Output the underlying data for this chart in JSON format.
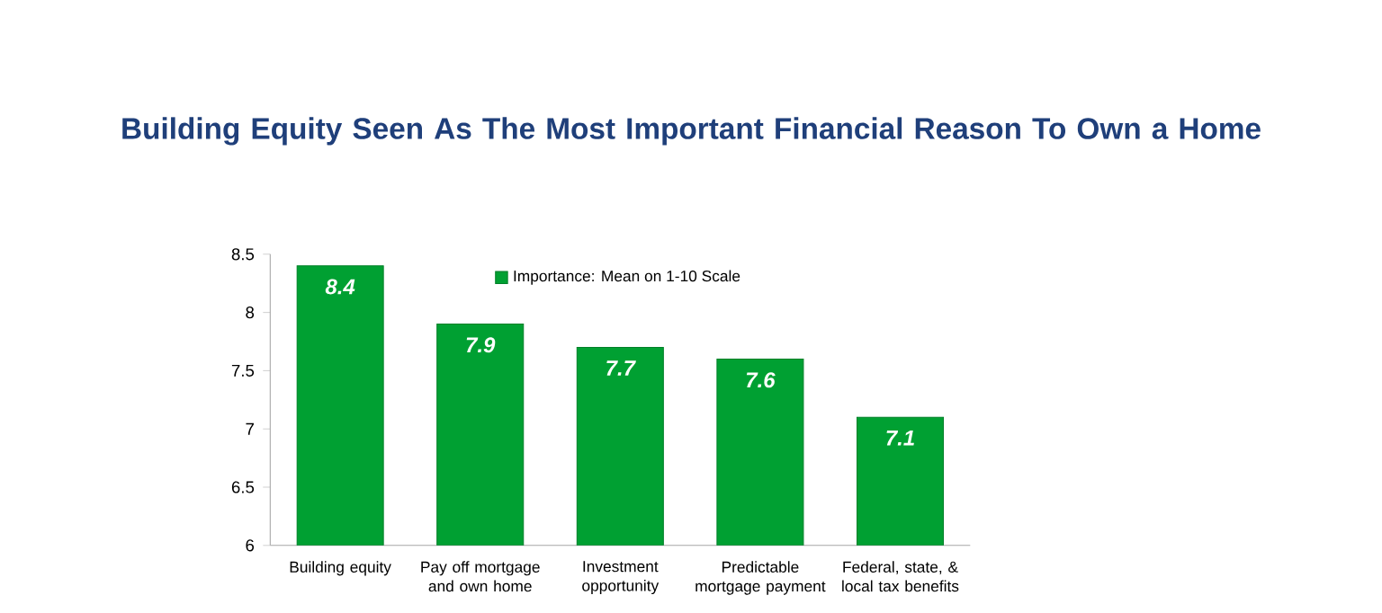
{
  "chart_data": {
    "type": "bar",
    "title": "Building Equity Seen As The Most Important Financial Reason To Own a Home",
    "categories": [
      "Building equity",
      "Pay off mortgage and own home",
      "Investment opportunity",
      "Predictable mortgage payment",
      "Federal, state, & local tax benefits"
    ],
    "series": [
      {
        "name": "Importance: Mean on 1-10 Scale",
        "color": "#00a032",
        "values": [
          8.4,
          7.9,
          7.7,
          7.6,
          7.1
        ]
      }
    ],
    "ylim": [
      6,
      8.5
    ],
    "yticks": [
      6,
      6.5,
      7,
      7.5,
      8,
      8.5
    ],
    "data_labels": true,
    "legend": "top",
    "grid": false
  }
}
